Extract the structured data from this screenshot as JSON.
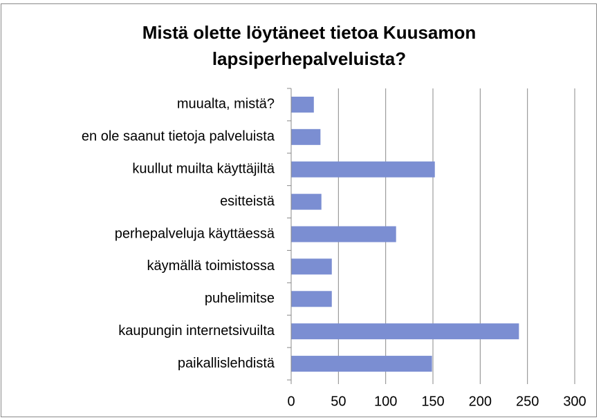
{
  "chart_data": {
    "type": "bar",
    "orientation": "horizontal",
    "title": "Mistä olette löytäneet tietoa Kuusamon lapsiperhepalveluista?",
    "categories": [
      "muualta, mistä?",
      "en ole saanut tietoja palveluista",
      "kuullut muilta käyttäjiltä",
      "esitteistä",
      "perhepalveluja käyttäessä",
      "käymällä toimistossa",
      "puhelimitse",
      "kaupungin internetsivuilta",
      "paikallislehdistä"
    ],
    "values": [
      24,
      31,
      152,
      32,
      111,
      43,
      43,
      241,
      149
    ],
    "color": "#7b8ed2",
    "xlim": [
      0,
      300
    ],
    "xticks": [
      0,
      50,
      100,
      150,
      200,
      250,
      300
    ],
    "grid": true
  }
}
